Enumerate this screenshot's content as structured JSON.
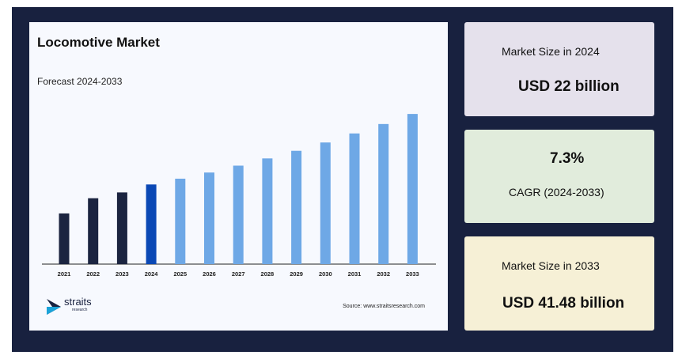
{
  "chart_data": {
    "type": "bar",
    "title": "Locomotive Market",
    "subtitle": "Forecast 2024-2033",
    "categories": [
      "2021",
      "2022",
      "2023",
      "2024",
      "2025",
      "2026",
      "2027",
      "2028",
      "2029",
      "2030",
      "2031",
      "2032",
      "2033"
    ],
    "values": [
      14.0,
      18.2,
      19.8,
      22.0,
      23.6,
      25.3,
      27.2,
      29.2,
      31.3,
      33.6,
      36.1,
      38.7,
      41.48
    ],
    "ylim": [
      0,
      45
    ],
    "grid": false,
    "colors": {
      "historical": "#1b2440",
      "base_year": "#0a48b5",
      "forecast": "#6ea8e6"
    },
    "base_year_index": 3
  },
  "brand": {
    "logo_word": "straits",
    "logo_sub": "research"
  },
  "source": "Source: www.straitsresearch.com",
  "stats": {
    "size_2024_label": "Market Size in 2024",
    "size_2024_value": "USD 22 billion",
    "cagr_value": "7.3%",
    "cagr_label": "CAGR (2024-2033)",
    "size_2033_label": "Market Size in 2033",
    "size_2033_value": "USD 41.48 billion"
  }
}
